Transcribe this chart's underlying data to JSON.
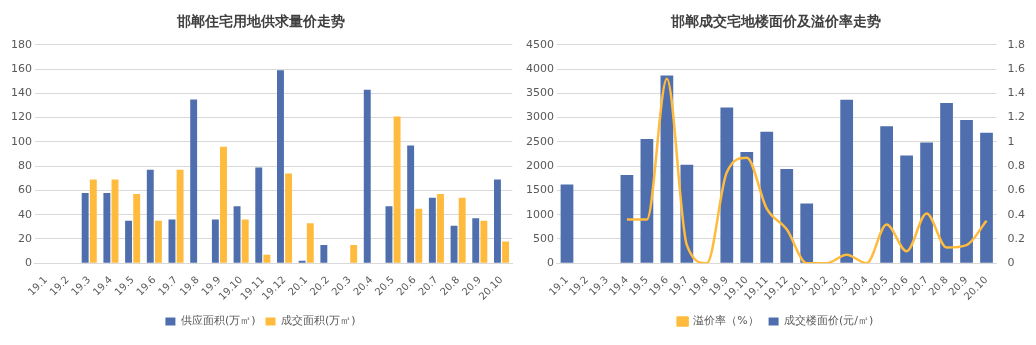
{
  "chart_data": [
    {
      "type": "bar",
      "title": "邯郸住宅用地供求量价走势",
      "categories": [
        "19.1",
        "19.2",
        "19.3",
        "19.4",
        "19.5",
        "19.6",
        "19.7",
        "19.8",
        "19.9",
        "19.10",
        "19.11",
        "19.12",
        "20.1",
        "20.2",
        "20.3",
        "20.4",
        "20.5",
        "20.6",
        "20.7",
        "20.8",
        "20.9",
        "20.10"
      ],
      "series": [
        {
          "name": "供应面积(万㎡)",
          "color": "#4e6ead",
          "values": [
            null,
            null,
            58,
            58,
            35,
            77,
            36,
            135,
            36,
            47,
            79,
            159,
            2,
            15,
            null,
            143,
            47,
            97,
            54,
            31,
            37,
            69
          ]
        },
        {
          "name": "成交面积(万㎡)",
          "color": "#ffbb3d",
          "values": [
            null,
            null,
            69,
            69,
            57,
            35,
            77,
            null,
            96,
            36,
            7,
            74,
            33,
            null,
            15,
            null,
            121,
            45,
            57,
            54,
            35,
            18
          ]
        }
      ],
      "ylim": [
        0,
        180
      ],
      "yticks": [
        0,
        20,
        40,
        60,
        80,
        100,
        120,
        140,
        160,
        180
      ],
      "grid": "y",
      "legend": "bottom"
    },
    {
      "type": "bar",
      "title": "邯郸成交宅地楼面价及溢价率走势",
      "categories": [
        "19.1",
        "19.2",
        "19.3",
        "19.4",
        "19.5",
        "19.6",
        "19.7",
        "19.8",
        "19.9",
        "19.10",
        "19.11",
        "19.12",
        "20.1",
        "20.2",
        "20.3",
        "20.4",
        "20.5",
        "20.6",
        "20.7",
        "20.8",
        "20.9",
        "20.10"
      ],
      "series": [
        {
          "name": "成交楼面价(元/㎡)",
          "color": "#4e6ead",
          "values": [
            1620,
            null,
            null,
            1820,
            2560,
            3870,
            2030,
            null,
            3210,
            2290,
            2710,
            1940,
            1230,
            null,
            3370,
            null,
            2820,
            2220,
            2490,
            3300,
            2950,
            2690
          ]
        },
        {
          "name": "溢价率（%）",
          "type": "line",
          "axis": "y2",
          "color": "#ffbb3d",
          "values": [
            null,
            null,
            null,
            0.36,
            0.36,
            1.52,
            0.15,
            0,
            0.75,
            0.87,
            0.45,
            0.28,
            0,
            0,
            0.07,
            0,
            0.32,
            0.1,
            0.41,
            0.13,
            0.15,
            0.35
          ]
        }
      ],
      "ylim": [
        0,
        4500
      ],
      "yticks": [
        0,
        500,
        1000,
        1500,
        2000,
        2500,
        3000,
        3500,
        4000,
        4500
      ],
      "y2lim": [
        0,
        1.8
      ],
      "y2ticks": [
        0,
        0.2,
        0.4,
        0.6,
        0.8,
        1,
        1.2,
        1.4,
        1.6,
        1.8
      ],
      "grid": "y",
      "legend": "bottom"
    }
  ]
}
